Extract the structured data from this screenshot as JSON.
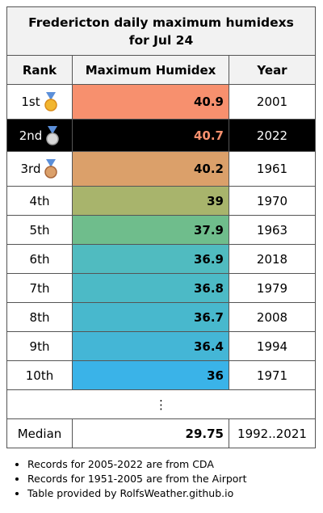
{
  "title": "Fredericton daily maximum humidexs for Jul 24",
  "columns": [
    "Rank",
    "Maximum Humidex",
    "Year"
  ],
  "rows": [
    {
      "rank": "1st",
      "value": 40.9,
      "year": 2001,
      "color": "#f7906e"
    },
    {
      "rank": "2nd",
      "value": 40.7,
      "year": 2022,
      "color": "#f7906e",
      "highlight": true
    },
    {
      "rank": "3rd",
      "value": 40.2,
      "year": 1961,
      "color": "#dba06a"
    },
    {
      "rank": "4th",
      "value": 39,
      "year": 1970,
      "color": "#a8b46c"
    },
    {
      "rank": "5th",
      "value": 37.9,
      "year": 1963,
      "color": "#6fbd8c"
    },
    {
      "rank": "6th",
      "value": 36.9,
      "year": 2018,
      "color": "#50bbc0"
    },
    {
      "rank": "7th",
      "value": 36.8,
      "year": 1979,
      "color": "#4cbac6"
    },
    {
      "rank": "8th",
      "value": 36.7,
      "year": 2008,
      "color": "#48b8cd"
    },
    {
      "rank": "9th",
      "value": 36.4,
      "year": 1994,
      "color": "#44b6d6"
    },
    {
      "rank": "10th",
      "value": 36,
      "year": 1971,
      "color": "#3ab3e8"
    }
  ],
  "ellipsis": "⋮",
  "median": {
    "label": "Median",
    "value": 29.75,
    "years": "1992..2021"
  },
  "notes": [
    "Records for 2005-2022 are from CDA",
    "Records for 1951-2005 are from the Airport",
    "Table provided by RolfsWeather.github.io"
  ]
}
